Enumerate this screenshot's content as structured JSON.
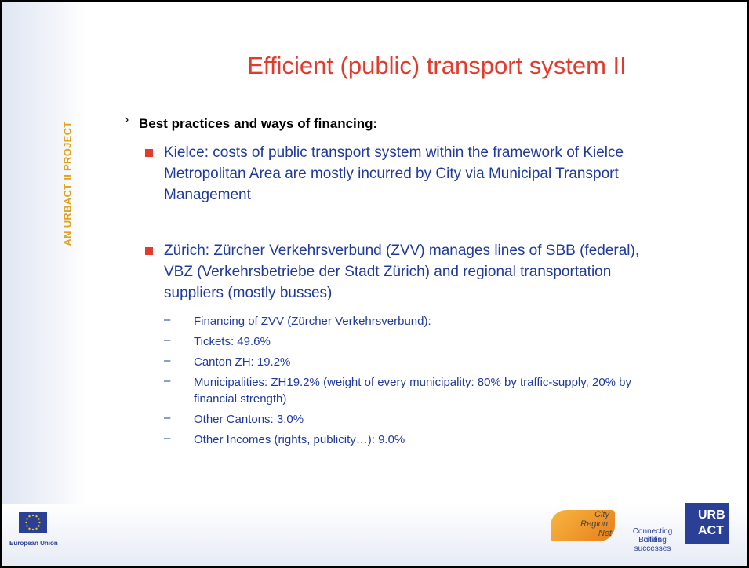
{
  "sidebar": {
    "project": "AN URBACT II PROJECT"
  },
  "slide": {
    "title": "Efficient (public) transport system II",
    "heading": "Best practices and ways of financing:",
    "bullets": [
      {
        "text": "Kielce: costs of public transport system within the framework of Kielce Metropolitan Area are mostly incurred by City via Municipal Transport Management",
        "subitems": []
      },
      {
        "text": "Zürich: Zürcher Verkehrsverbund (ZVV) manages lines of SBB (federal), VBZ (Verkehrsbetriebe der Stadt Zürich) and regional transportation suppliers (mostly busses)",
        "subitems": [
          "Financing of ZVV (Zürcher Verkehrsverbund):",
          "Tickets: 49.6%",
          "Canton ZH: 19.2%",
          "Municipalities: ZH19.2% (weight of every municipality: 80% by traffic-supply, 20% by financial strength)",
          "Other Cantons: 3.0%",
          "Other Incomes (rights, publicity…): 9.0%"
        ]
      }
    ]
  },
  "footer": {
    "eu": "European Union",
    "city_region": [
      "City",
      "Region",
      "Net"
    ],
    "tagline": [
      "Connecting cities",
      "Building successes"
    ],
    "urbact": [
      "URB",
      "ACT"
    ]
  }
}
